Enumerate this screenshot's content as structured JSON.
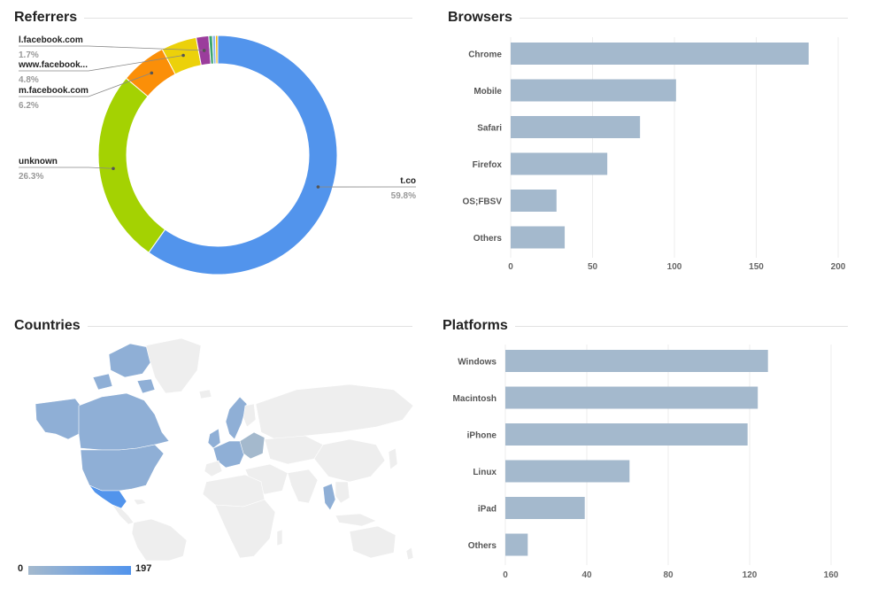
{
  "referrers": {
    "title": "Referrers",
    "chart_data": {
      "type": "pie",
      "variant": "donut",
      "slices": [
        {
          "label": "t.co",
          "percent_label": "59.8%",
          "value": 59.8,
          "color": "#5294ec"
        },
        {
          "label": "unknown",
          "percent_label": "26.3%",
          "value": 26.3,
          "color": "#a4d202"
        },
        {
          "label": "m.facebook.com",
          "percent_label": "6.2%",
          "value": 6.2,
          "color": "#fb8f08"
        },
        {
          "label": "www.facebook...",
          "percent_label": "4.8%",
          "value": 4.8,
          "color": "#ecd10a"
        },
        {
          "label": "l.facebook.com",
          "percent_label": "1.7%",
          "value": 1.7,
          "color": "#9b3d9c"
        },
        {
          "label": "",
          "percent_label": "",
          "value": 0.5,
          "color": "#3fa66c"
        },
        {
          "label": "",
          "percent_label": "",
          "value": 0.4,
          "color": "#8ab4f2"
        },
        {
          "label": "",
          "percent_label": "",
          "value": 0.3,
          "color": "#f2b705"
        }
      ]
    }
  },
  "browsers": {
    "title": "Browsers",
    "chart_data": {
      "type": "bar",
      "orientation": "horizontal",
      "categories": [
        "Chrome",
        "Mobile",
        "Safari",
        "Firefox",
        "OS;FBSV",
        "Others"
      ],
      "values": [
        182,
        101,
        79,
        59,
        28,
        33
      ],
      "xlim": [
        0,
        200
      ],
      "ticks": [
        0,
        50,
        100,
        150,
        200
      ],
      "bar_color": "#a4b9cd",
      "grid": true
    }
  },
  "countries": {
    "title": "Countries",
    "chart_data": {
      "type": "heatmap",
      "variant": "choropleth-world-map",
      "legend_min": "0",
      "legend_max": "197",
      "color_min": "#a4b9cd",
      "color_max": "#5294ec",
      "base_color": "#eeeeee"
    }
  },
  "platforms": {
    "title": "Platforms",
    "chart_data": {
      "type": "bar",
      "orientation": "horizontal",
      "categories": [
        "Windows",
        "Macintosh",
        "iPhone",
        "Linux",
        "iPad",
        "Others"
      ],
      "values": [
        129,
        124,
        119,
        61,
        39,
        11
      ],
      "xlim": [
        0,
        160
      ],
      "ticks": [
        0,
        40,
        80,
        120,
        160
      ],
      "bar_color": "#a4b9cd",
      "grid": true
    }
  }
}
